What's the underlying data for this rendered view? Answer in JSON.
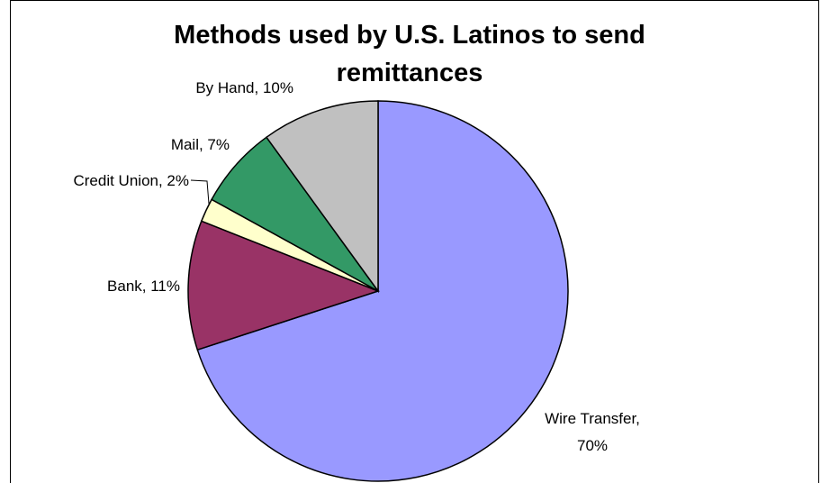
{
  "chart_data": {
    "type": "pie",
    "title": "Methods used by U.S. Latinos to send remittances",
    "slices": [
      {
        "label": "Wire Transfer",
        "value": 70,
        "value_label": "70%",
        "color": "#9999FF"
      },
      {
        "label": "Bank",
        "value": 11,
        "value_label": "11%",
        "color": "#993366"
      },
      {
        "label": "Credit Union",
        "value": 2,
        "value_label": "2%",
        "color": "#FFFFCC"
      },
      {
        "label": "Mail",
        "value": 7,
        "value_label": "7%",
        "color": "#339966"
      },
      {
        "label": "By Hand",
        "value": 10,
        "value_label": "10%",
        "color": "#C0C0C0"
      }
    ],
    "legend": "none",
    "start_angle": "12 o'clock",
    "direction": "clockwise"
  }
}
